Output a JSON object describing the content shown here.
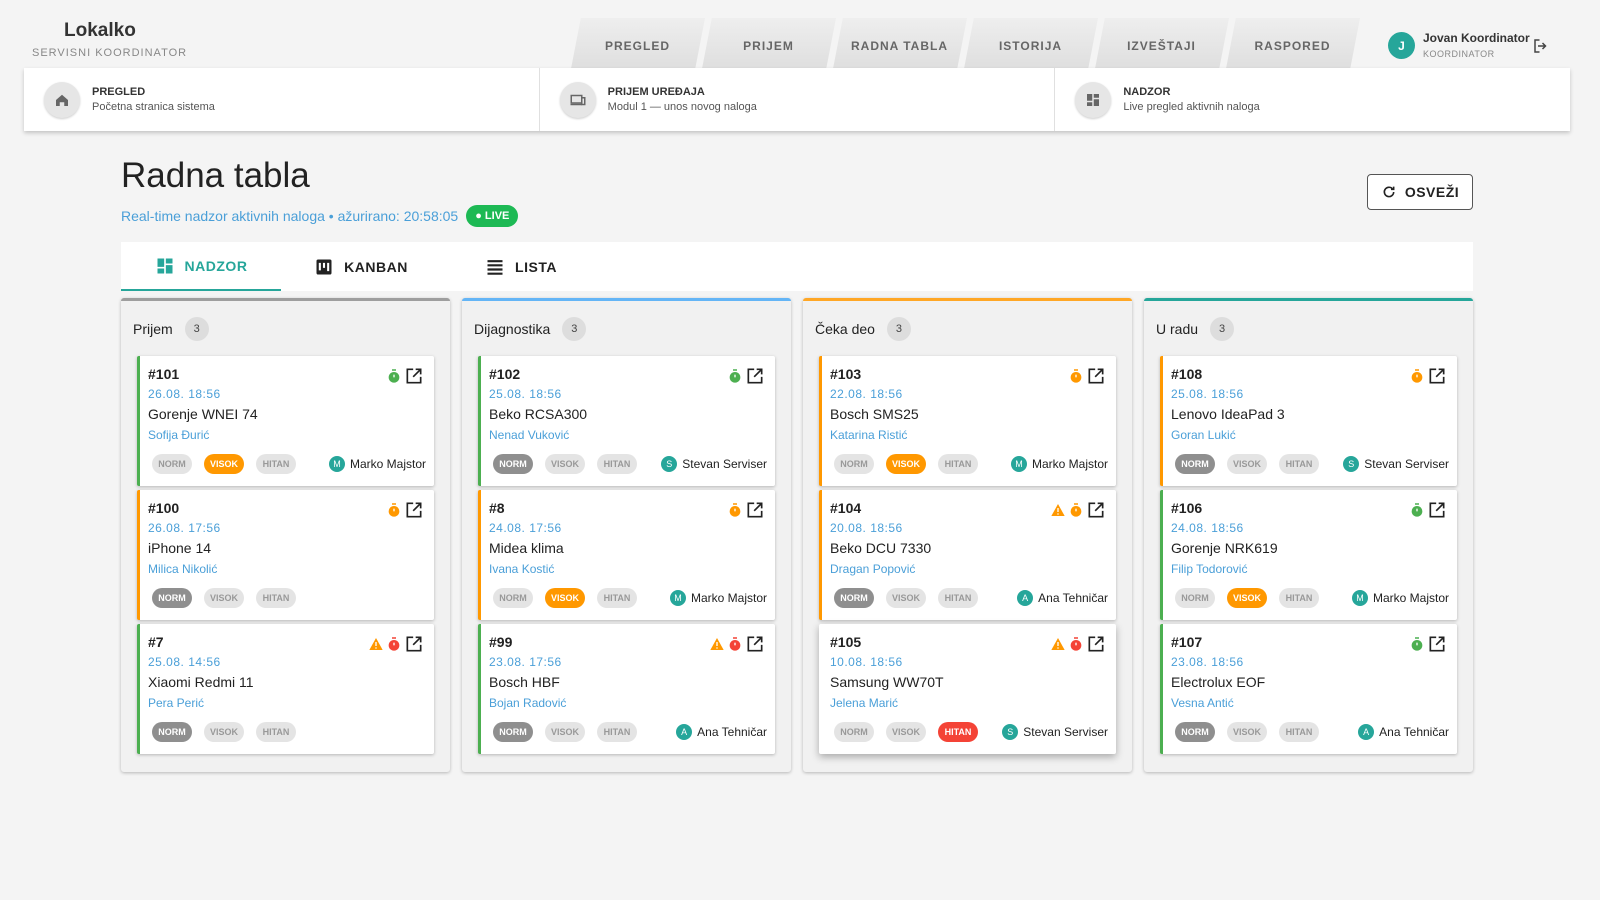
{
  "header": {
    "brand": "Lokalko",
    "role": "SERVISNI KOORDINATOR",
    "nav": [
      "PREGLED",
      "PRIJEM",
      "RADNA TABLA",
      "ISTORIJA",
      "IZVEŠTAJI",
      "RASPORED"
    ],
    "user": {
      "initial": "J",
      "name": "Jovan Koordinator",
      "role": "KOORDINATOR"
    }
  },
  "shortcuts": [
    {
      "title": "PREGLED",
      "subtitle": "Početna stranica sistema"
    },
    {
      "title": "PRIJEM UREĐAJA",
      "subtitle": "Modul 1 — unos novog naloga"
    },
    {
      "title": "NADZOR",
      "subtitle": "Live pregled aktivnih naloga"
    }
  ],
  "page": {
    "title": "Radna tabla",
    "subtitle": "Real-time nadzor aktivnih naloga • ažurirano: 20:58:05",
    "live": "LIVE",
    "refresh": "OSVEŽI"
  },
  "tabs": [
    "NADZOR",
    "KANBAN",
    "LISTA"
  ],
  "priority_labels": [
    "NORM",
    "VISOK",
    "HITAN"
  ],
  "columns": [
    {
      "name": "Prijem",
      "count": 3,
      "color": "#9e9e9e",
      "cards": [
        {
          "id": "#101",
          "date": "26.08. 18:56",
          "device": "Gorenje WNEI 74",
          "client": "Sofija Đurić",
          "priority": 1,
          "border": "#4caf50",
          "timer": "#4caf50",
          "warning": false,
          "assignee": {
            "initial": "M",
            "name": "Marko Majstor"
          }
        },
        {
          "id": "#100",
          "date": "26.08. 17:56",
          "device": "iPhone 14",
          "client": "Milica Nikolić",
          "priority": 0,
          "border": "#ff9800",
          "timer": "#ff9800",
          "warning": false,
          "assignee": null
        },
        {
          "id": "#7",
          "date": "25.08. 14:56",
          "device": "Xiaomi Redmi 11",
          "client": "Pera Perić",
          "priority": 0,
          "border": "#4caf50",
          "timer": "#f44336",
          "warning": true,
          "assignee": null
        }
      ]
    },
    {
      "name": "Dijagnostika",
      "count": 3,
      "color": "#64b5f6",
      "cards": [
        {
          "id": "#102",
          "date": "25.08. 18:56",
          "device": "Beko RCSA300",
          "client": "Nenad Vuković",
          "priority": 0,
          "border": "#4caf50",
          "timer": "#4caf50",
          "warning": false,
          "assignee": {
            "initial": "S",
            "name": "Stevan Serviser"
          }
        },
        {
          "id": "#8",
          "date": "24.08. 17:56",
          "device": "Midea klima",
          "client": "Ivana Kostić",
          "priority": 1,
          "border": "#ff9800",
          "timer": "#ff9800",
          "warning": false,
          "assignee": {
            "initial": "M",
            "name": "Marko Majstor"
          }
        },
        {
          "id": "#99",
          "date": "23.08. 17:56",
          "device": "Bosch HBF",
          "client": "Bojan Radović",
          "priority": 0,
          "border": "#4caf50",
          "timer": "#f44336",
          "warning": true,
          "assignee": {
            "initial": "A",
            "name": "Ana Tehničar"
          }
        }
      ]
    },
    {
      "name": "Čeka deo",
      "count": 3,
      "color": "#ffa726",
      "cards": [
        {
          "id": "#103",
          "date": "22.08. 18:56",
          "device": "Bosch SMS25",
          "client": "Katarina Ristić",
          "priority": 1,
          "border": "#ff9800",
          "timer": "#ff9800",
          "warning": false,
          "assignee": {
            "initial": "M",
            "name": "Marko Majstor"
          }
        },
        {
          "id": "#104",
          "date": "20.08. 18:56",
          "device": "Beko DCU 7330",
          "client": "Dragan Popović",
          "priority": 0,
          "border": "#ff9800",
          "timer": "#ff9800",
          "warning": true,
          "assignee": {
            "initial": "A",
            "name": "Ana Tehničar"
          }
        },
        {
          "id": "#105",
          "date": "10.08. 18:56",
          "device": "Samsung WW70T",
          "client": "Jelena Marić",
          "priority": 2,
          "border": "#ffffff",
          "timer": "#f44336",
          "warning": true,
          "assignee": {
            "initial": "S",
            "name": "Stevan Serviser"
          }
        }
      ]
    },
    {
      "name": "U radu",
      "count": 3,
      "color": "#26a69a",
      "cards": [
        {
          "id": "#108",
          "date": "25.08. 18:56",
          "device": "Lenovo IdeaPad 3",
          "client": "Goran Lukić",
          "priority": 0,
          "border": "#ff9800",
          "timer": "#ff9800",
          "warning": false,
          "assignee": {
            "initial": "S",
            "name": "Stevan Serviser"
          }
        },
        {
          "id": "#106",
          "date": "24.08. 18:56",
          "device": "Gorenje NRK619",
          "client": "Filip Todorović",
          "priority": 1,
          "border": "#4caf50",
          "timer": "#4caf50",
          "warning": false,
          "assignee": {
            "initial": "M",
            "name": "Marko Majstor"
          }
        },
        {
          "id": "#107",
          "date": "23.08. 18:56",
          "device": "Electrolux EOF",
          "client": "Vesna Antić",
          "priority": 0,
          "border": "#4caf50",
          "timer": "#4caf50",
          "warning": false,
          "assignee": {
            "initial": "A",
            "name": "Ana Tehničar"
          }
        }
      ]
    }
  ]
}
